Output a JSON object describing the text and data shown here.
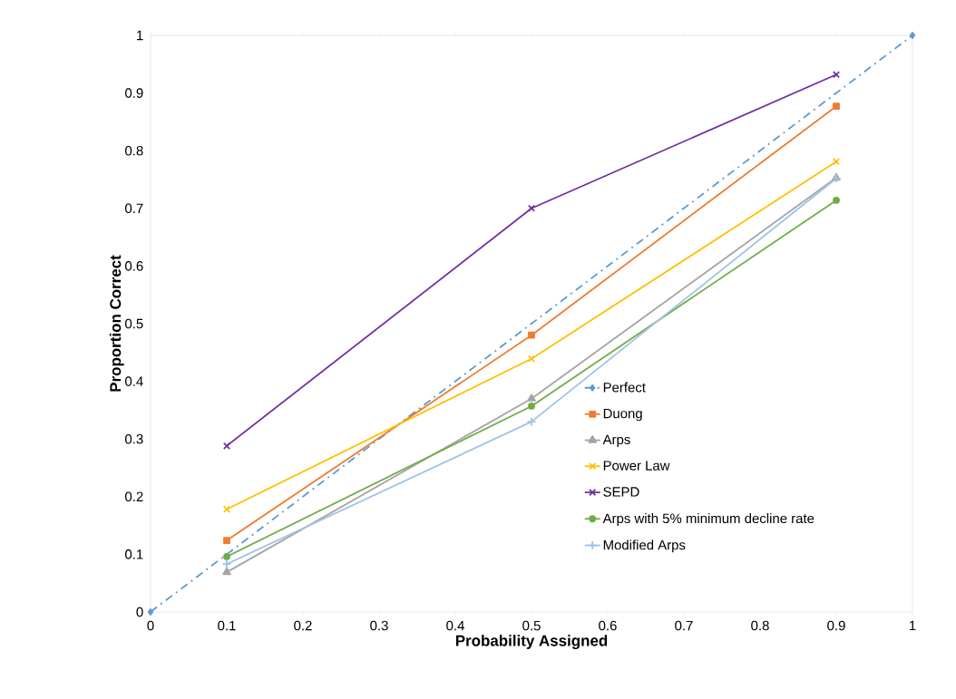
{
  "chart_data": {
    "type": "line",
    "xlabel": "Probability Assigned",
    "ylabel": "Proportion Correct",
    "xlim": [
      0,
      1
    ],
    "ylim": [
      0,
      1
    ],
    "xticks": [
      0,
      0.1,
      0.2,
      0.3,
      0.4,
      0.5,
      0.6,
      0.7,
      0.8,
      0.9,
      1
    ],
    "yticks": [
      0,
      0.1,
      0.2,
      0.3,
      0.4,
      0.5,
      0.6,
      0.7,
      0.8,
      0.9,
      1
    ],
    "grid": false,
    "legend": "bottom right",
    "series": [
      {
        "name": "Perfect",
        "color": "#5b9bd5",
        "x": [
          0,
          1
        ],
        "values": [
          0,
          1
        ],
        "marker": "diamond",
        "line_style": "dashdot"
      },
      {
        "name": "Duong",
        "color": "#ed7d31",
        "x": [
          0.1,
          0.5,
          0.9
        ],
        "values": [
          0.124,
          0.48,
          0.877
        ],
        "marker": "square"
      },
      {
        "name": "Arps",
        "color": "#a5a5a5",
        "x": [
          0.1,
          0.5,
          0.9
        ],
        "values": [
          0.069,
          0.37,
          0.753
        ],
        "marker": "triangle"
      },
      {
        "name": "Power Law",
        "color": "#ffc000",
        "x": [
          0.1,
          0.5,
          0.9
        ],
        "values": [
          0.178,
          0.439,
          0.781
        ],
        "marker": "cross"
      },
      {
        "name": "SEPD",
        "color": "#7030a0",
        "x": [
          0.1,
          0.5,
          0.9
        ],
        "values": [
          0.288,
          0.7,
          0.932
        ],
        "marker": "cross"
      },
      {
        "name": "Arps with 5% minimum decline rate",
        "color": "#70ad47",
        "x": [
          0.1,
          0.5,
          0.9
        ],
        "values": [
          0.096,
          0.357,
          0.714
        ],
        "marker": "circle"
      },
      {
        "name": "Modified Arps",
        "color": "#9dc3e6",
        "x": [
          0.1,
          0.5,
          0.9
        ],
        "values": [
          0.083,
          0.33,
          0.752
        ],
        "marker": "plus"
      }
    ]
  }
}
